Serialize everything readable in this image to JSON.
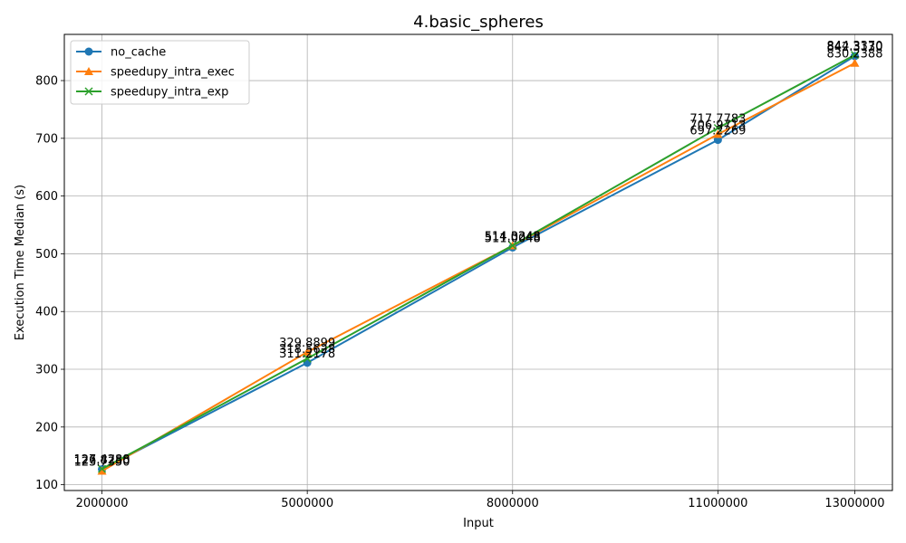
{
  "chart_data": {
    "type": "line",
    "title": "4.basic_spheres",
    "xlabel": "Input",
    "ylabel": "Execution Time Median (s)",
    "x": [
      2000000,
      5000000,
      8000000,
      11000000,
      13000000
    ],
    "x_tick_labels": [
      "2000000",
      "5000000",
      "8000000",
      "11000000",
      "13000000"
    ],
    "y_ticks": [
      100,
      200,
      300,
      400,
      500,
      600,
      700,
      800
    ],
    "y_tick_labels": [
      "100",
      "200",
      "300",
      "400",
      "500",
      "600",
      "700",
      "800"
    ],
    "ylim": [
      90,
      880
    ],
    "grid": true,
    "legend_position": "top-left",
    "series": [
      {
        "name": "no_cache",
        "color": "#1f77b4",
        "marker": "circle",
        "values": [
          126.875,
          311.2178,
          511.0048,
          697.2269,
          842.313
        ],
        "labels": [
          "126.8750",
          "311.2178",
          "511.0048",
          "697.2269",
          "842.3130"
        ]
      },
      {
        "name": "speedupy_intra_exec",
        "color": "#ff7f0e",
        "marker": "triangle",
        "values": [
          123.735,
          329.8899,
          514.0243,
          706.9713,
          830.2388
        ],
        "labels": [
          "123.7350",
          "329.8899",
          "514.0243",
          "706.9713",
          "830.2388"
        ]
      },
      {
        "name": "speedupy_intra_exp",
        "color": "#2ca02c",
        "marker": "x",
        "values": [
          127.4288,
          318.5628,
          514.3348,
          717.7783,
          844.337
        ],
        "labels": [
          "127.4288",
          "318.5628",
          "514.3348",
          "717.7783",
          "844.3370"
        ]
      }
    ]
  }
}
